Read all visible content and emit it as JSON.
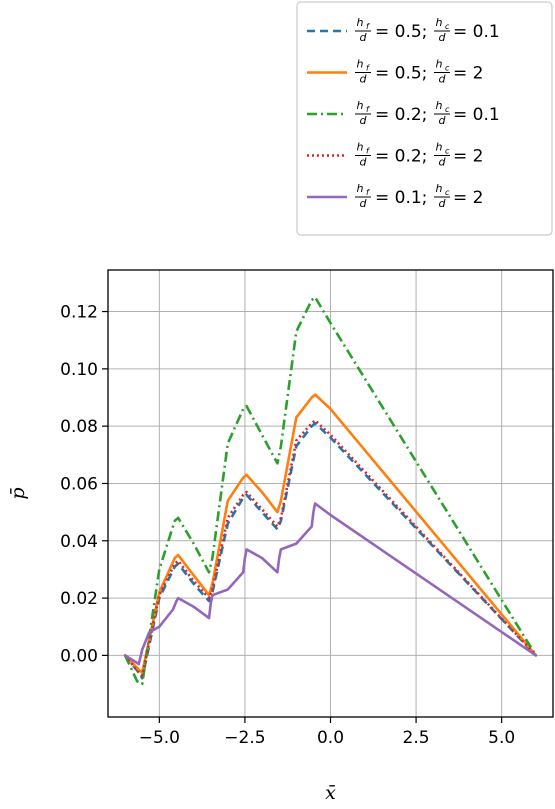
{
  "chart_data": {
    "type": "line",
    "xlabel": "x̄",
    "ylabel": "p̄",
    "xlim": [
      -6.5,
      6.5
    ],
    "ylim": [
      -0.0215,
      0.1345
    ],
    "xticks": [
      -5.0,
      -2.5,
      0.0,
      2.5,
      5.0
    ],
    "xtick_labels": [
      "−5.0",
      "−2.5",
      "0.0",
      "2.5",
      "5.0"
    ],
    "yticks": [
      0.0,
      0.02,
      0.04,
      0.06,
      0.08,
      0.1,
      0.12
    ],
    "ytick_labels": [
      "0.00",
      "0.02",
      "0.04",
      "0.06",
      "0.08",
      "0.10",
      "0.12"
    ],
    "grid": true,
    "legend_position": "above-right",
    "series": [
      {
        "name": "hf/d = 0.5; hc/d = 0.1",
        "legend": {
          "hf": "0.5",
          "hc": "0.1"
        },
        "color": "#1f77b4",
        "dash": "8,5",
        "x": [
          -6.0,
          -5.6,
          -5.5,
          -5.0,
          -4.55,
          -4.45,
          -4.0,
          -3.55,
          -3.45,
          -3.0,
          -2.55,
          -2.45,
          -2.0,
          -1.55,
          -1.45,
          -1.0,
          -0.55,
          -0.45,
          0.0,
          6.0
        ],
        "y": [
          0.0,
          -0.006,
          -0.008,
          0.02,
          0.031,
          0.032,
          0.025,
          0.019,
          0.022,
          0.046,
          0.055,
          0.056,
          0.05,
          0.044,
          0.047,
          0.073,
          0.08,
          0.081,
          0.076,
          0.0
        ]
      },
      {
        "name": "hf/d = 0.5; hc/d = 2",
        "legend": {
          "hf": "0.5",
          "hc": "2"
        },
        "color": "#ff7f0e",
        "dash": "",
        "x": [
          -6.0,
          -5.6,
          -5.5,
          -5.0,
          -4.55,
          -4.45,
          -4.0,
          -3.55,
          -3.45,
          -3.0,
          -2.55,
          -2.45,
          -2.0,
          -1.55,
          -1.45,
          -1.0,
          -0.55,
          -0.45,
          0.0,
          6.0
        ],
        "y": [
          0.0,
          -0.005,
          -0.006,
          0.022,
          0.034,
          0.035,
          0.028,
          0.021,
          0.025,
          0.054,
          0.062,
          0.063,
          0.057,
          0.05,
          0.054,
          0.083,
          0.09,
          0.091,
          0.086,
          0.0
        ]
      },
      {
        "name": "hf/d = 0.2; hc/d = 0.1",
        "legend": {
          "hf": "0.2",
          "hc": "0.1"
        },
        "color": "#2ca02c",
        "dash": "10,4,2,4",
        "x": [
          -6.0,
          -5.65,
          -5.5,
          -5.0,
          -4.55,
          -4.45,
          -4.0,
          -3.55,
          -3.45,
          -3.0,
          -2.55,
          -2.45,
          -2.0,
          -1.55,
          -1.45,
          -1.0,
          -0.55,
          -0.45,
          0.0,
          6.0
        ],
        "y": [
          0.0,
          -0.009,
          -0.01,
          0.03,
          0.047,
          0.048,
          0.039,
          0.029,
          0.034,
          0.074,
          0.086,
          0.087,
          0.077,
          0.067,
          0.073,
          0.113,
          0.124,
          0.125,
          0.116,
          0.0
        ]
      },
      {
        "name": "hf/d = 0.2; hc/d = 2",
        "legend": {
          "hf": "0.2",
          "hc": "2"
        },
        "color": "#d62728",
        "dash": "2,3",
        "x": [
          -6.0,
          -5.6,
          -5.5,
          -5.0,
          -4.55,
          -4.45,
          -4.0,
          -3.55,
          -3.45,
          -3.0,
          -2.55,
          -2.45,
          -2.0,
          -1.55,
          -1.45,
          -1.0,
          -0.55,
          -0.45,
          0.0,
          6.0
        ],
        "y": [
          0.0,
          -0.006,
          -0.007,
          0.021,
          0.032,
          0.033,
          0.026,
          0.02,
          0.023,
          0.048,
          0.056,
          0.057,
          0.051,
          0.045,
          0.048,
          0.075,
          0.081,
          0.082,
          0.077,
          0.0
        ]
      },
      {
        "name": "hf/d = 0.1; hc/d = 2",
        "legend": {
          "hf": "0.1",
          "hc": "2"
        },
        "color": "#9467bd",
        "dash": "",
        "x": [
          -6.0,
          -5.6,
          -5.5,
          -5.3,
          -5.0,
          -4.6,
          -4.5,
          -4.45,
          -4.0,
          -3.55,
          -3.5,
          -3.45,
          -3.0,
          -2.55,
          -2.5,
          -2.45,
          -2.0,
          -1.55,
          -1.5,
          -1.45,
          -1.0,
          -0.55,
          -0.5,
          -0.45,
          0.0,
          6.0
        ],
        "y": [
          0.0,
          -0.003,
          0.002,
          0.008,
          0.01,
          0.016,
          0.019,
          0.02,
          0.017,
          0.013,
          0.018,
          0.021,
          0.023,
          0.029,
          0.034,
          0.037,
          0.034,
          0.029,
          0.034,
          0.037,
          0.039,
          0.045,
          0.05,
          0.053,
          0.049,
          0.0
        ]
      }
    ]
  }
}
